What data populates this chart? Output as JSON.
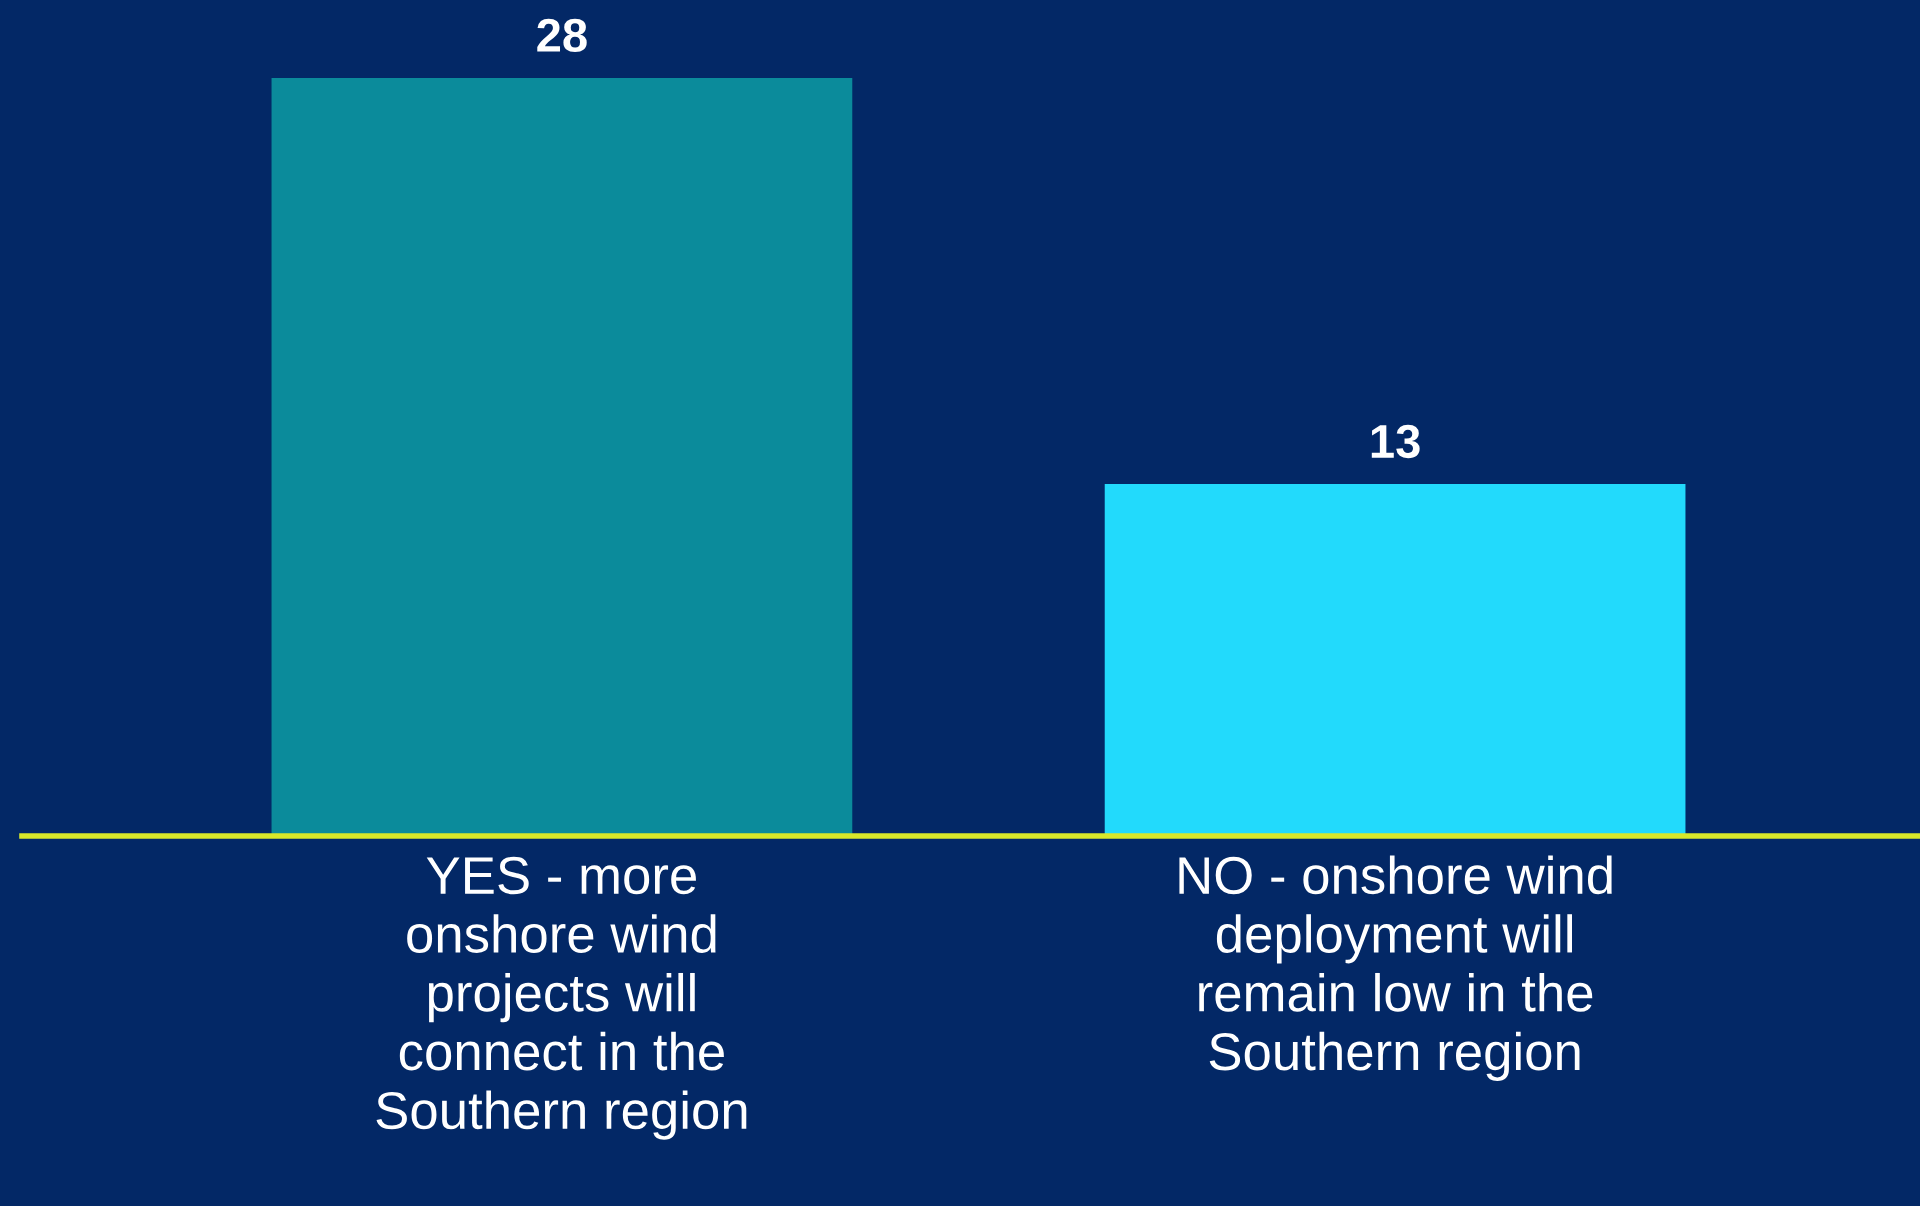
{
  "chart_data": {
    "type": "bar",
    "categories": [
      "YES - more\nonshore wind\nprojects will\nconnect in the\nSouthern region",
      "NO - onshore wind\ndeployment will\nremain low in the\nSouthern region"
    ],
    "values": [
      28,
      13
    ],
    "colors": [
      "#0b8b9b",
      "#22dafc"
    ],
    "data_labels": true,
    "grid": false,
    "legend": false
  }
}
